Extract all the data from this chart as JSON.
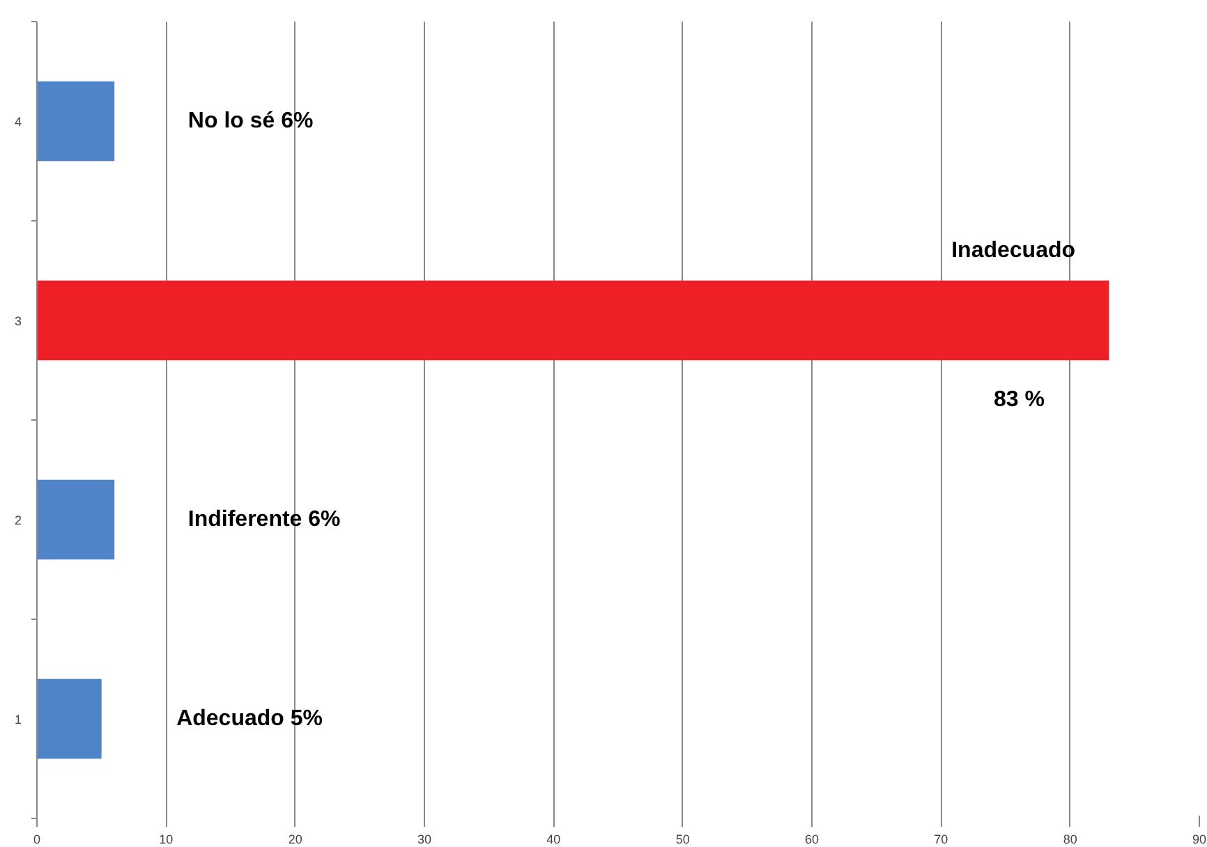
{
  "chart_data": {
    "type": "bar",
    "orientation": "horizontal",
    "categories": [
      "4",
      "3",
      "2",
      "1"
    ],
    "values": [
      6,
      83,
      6,
      5
    ],
    "colors": [
      "#4f84c9",
      "#ee1f26",
      "#4f84c9",
      "#4f84c9"
    ],
    "xlim": [
      0,
      90
    ],
    "xticks": [
      0,
      10,
      20,
      30,
      40,
      50,
      60,
      70,
      80,
      90
    ],
    "grid": "x",
    "annotations": [
      "No lo sé  6%",
      "Inadecuado",
      "83 %",
      "Indiferente 6%",
      "Adecuado 5%"
    ]
  }
}
